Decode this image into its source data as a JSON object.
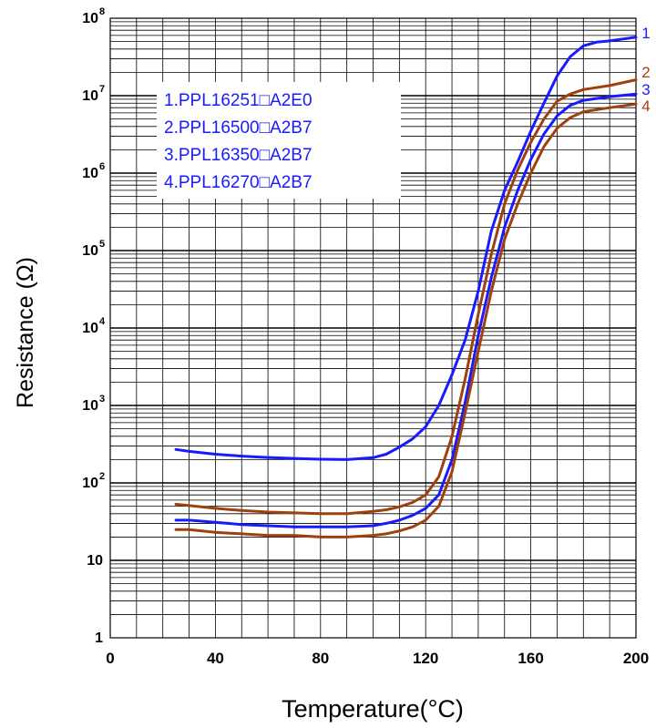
{
  "chart_data": {
    "type": "line",
    "xlabel": "Temperature(°C)",
    "ylabel": "Resistance (Ω)",
    "xlim": [
      0,
      200
    ],
    "ylim": [
      1,
      100000000
    ],
    "yscale": "log",
    "grid": true,
    "x_ticks": [
      "0",
      "40",
      "80",
      "120",
      "160",
      "200"
    ],
    "y_ticks": [
      {
        "base": "1",
        "exp": ""
      },
      {
        "base": "10",
        "exp": ""
      },
      {
        "base": "10",
        "exp": "2"
      },
      {
        "base": "10",
        "exp": "3"
      },
      {
        "base": "10",
        "exp": "4"
      },
      {
        "base": "10",
        "exp": "5"
      },
      {
        "base": "10",
        "exp": "6"
      },
      {
        "base": "10",
        "exp": "7"
      },
      {
        "base": "10",
        "exp": "8"
      }
    ],
    "legend": {
      "placement": "top-left",
      "entries": [
        "1.PPL16251□A2E0",
        "2.PPL16500□A2B7",
        "3.PPL16350□A2B7",
        "4.PPL16270□A2B7"
      ]
    },
    "colors": {
      "blue": "#1a1aff",
      "brown": "#a0400c"
    },
    "series": [
      {
        "label": "1",
        "color": "#1a1aff",
        "x": [
          25,
          30,
          40,
          50,
          60,
          70,
          80,
          90,
          100,
          105,
          110,
          115,
          120,
          125,
          130,
          135,
          140,
          145,
          150,
          155,
          160,
          165,
          170,
          175,
          180,
          185,
          190,
          200
        ],
        "y": [
          270,
          255,
          235,
          222,
          213,
          207,
          202,
          200,
          212,
          235,
          290,
          370,
          530,
          1000,
          2500,
          7000,
          30000,
          180000,
          600000,
          1400000,
          3500000,
          8000000,
          18000000,
          32000000,
          44000000,
          49000000,
          51000000,
          57000000
        ]
      },
      {
        "label": "2",
        "color": "#a0400c",
        "x": [
          25,
          30,
          40,
          50,
          60,
          70,
          80,
          90,
          100,
          105,
          110,
          115,
          120,
          125,
          130,
          135,
          140,
          145,
          150,
          155,
          160,
          165,
          170,
          175,
          180,
          190,
          200
        ],
        "y": [
          53,
          51,
          47,
          44,
          42,
          41,
          40,
          40,
          43,
          45,
          49,
          56,
          70,
          120,
          400,
          2200,
          15000,
          90000,
          400000,
          1100000,
          2500000,
          5000000,
          8500000,
          10500000,
          12000000,
          13500000,
          16000000
        ]
      },
      {
        "label": "3",
        "color": "#1a1aff",
        "x": [
          25,
          30,
          40,
          50,
          60,
          70,
          80,
          90,
          100,
          105,
          110,
          115,
          120,
          125,
          130,
          135,
          140,
          145,
          150,
          155,
          160,
          165,
          170,
          175,
          180,
          190,
          200
        ],
        "y": [
          33,
          33,
          31,
          29,
          28,
          27,
          27,
          27,
          28,
          30,
          33,
          38,
          47,
          70,
          200,
          1100,
          8000,
          45000,
          200000,
          600000,
          1500000,
          3200000,
          5500000,
          7500000,
          8700000,
          9700000,
          10500000
        ]
      },
      {
        "label": "4",
        "color": "#a0400c",
        "x": [
          25,
          30,
          40,
          50,
          60,
          70,
          80,
          90,
          100,
          105,
          110,
          115,
          120,
          125,
          130,
          135,
          140,
          145,
          150,
          155,
          160,
          165,
          170,
          175,
          180,
          190,
          200
        ],
        "y": [
          25,
          25,
          23,
          22,
          21,
          21,
          20,
          20,
          21,
          22,
          24,
          27,
          33,
          50,
          140,
          800,
          5000,
          30000,
          140000,
          400000,
          1000000,
          2200000,
          3800000,
          5200000,
          6200000,
          7000000,
          7800000
        ]
      }
    ]
  }
}
